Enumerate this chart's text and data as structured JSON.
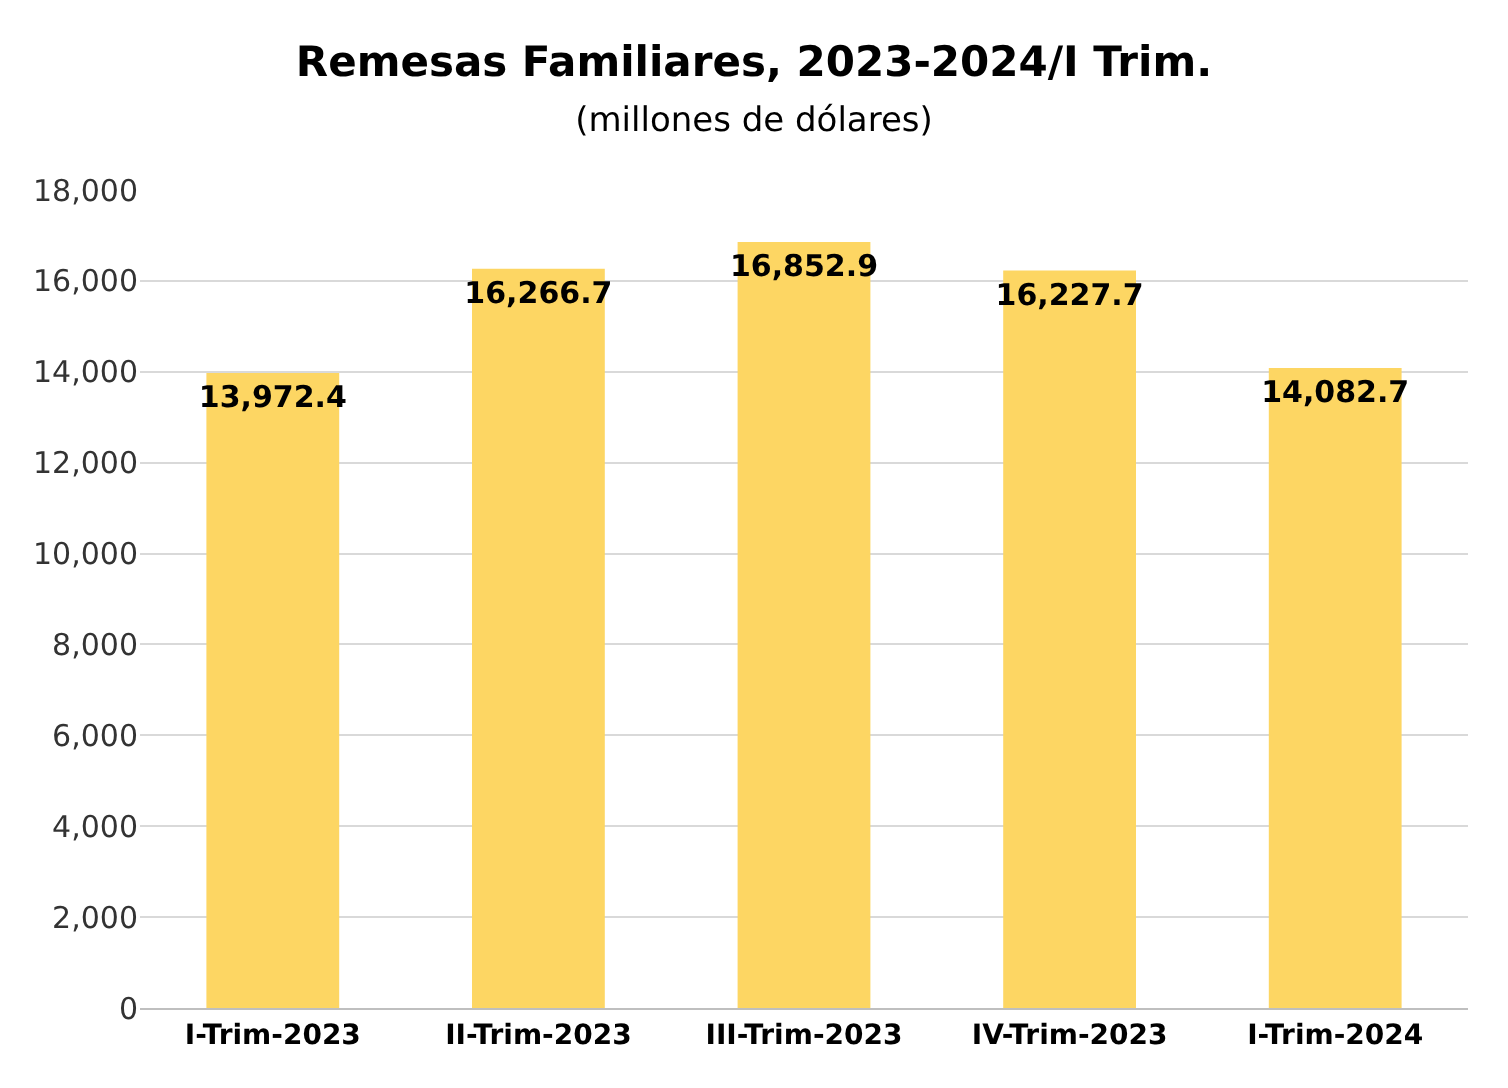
{
  "chart_data": {
    "type": "bar",
    "title": "Remesas Familiares, 2023-2024/I Trim.",
    "subtitle": "(millones de dólares)",
    "categories": [
      "I-Trim-2023",
      "II-Trim-2023",
      "III-Trim-2023",
      "IV-Trim-2023",
      "I-Trim-2024"
    ],
    "values": [
      13972.4,
      16266.7,
      16852.9,
      16227.7,
      14082.7
    ],
    "value_labels": [
      "13,972.4",
      "16,266.7",
      "16,852.9",
      "16,227.7",
      "14,082.7"
    ],
    "color": "#fdd663",
    "ylim": [
      0,
      18000
    ],
    "yticks": [
      0,
      {
        "value": 2000,
        "label": "2,000"
      },
      {
        "value": 4000,
        "label": "4,000"
      },
      {
        "value": 6000,
        "label": "6,000"
      },
      {
        "value": 8000,
        "label": "8,000"
      },
      {
        "value": 10000,
        "label": "10,000"
      },
      {
        "value": 12000,
        "label": "12,000"
      },
      {
        "value": 14000,
        "label": "14,000"
      },
      {
        "value": 16000,
        "label": "16,000"
      },
      {
        "value": 18000,
        "label": "18,000"
      }
    ],
    "grid": "y",
    "legend": false
  }
}
